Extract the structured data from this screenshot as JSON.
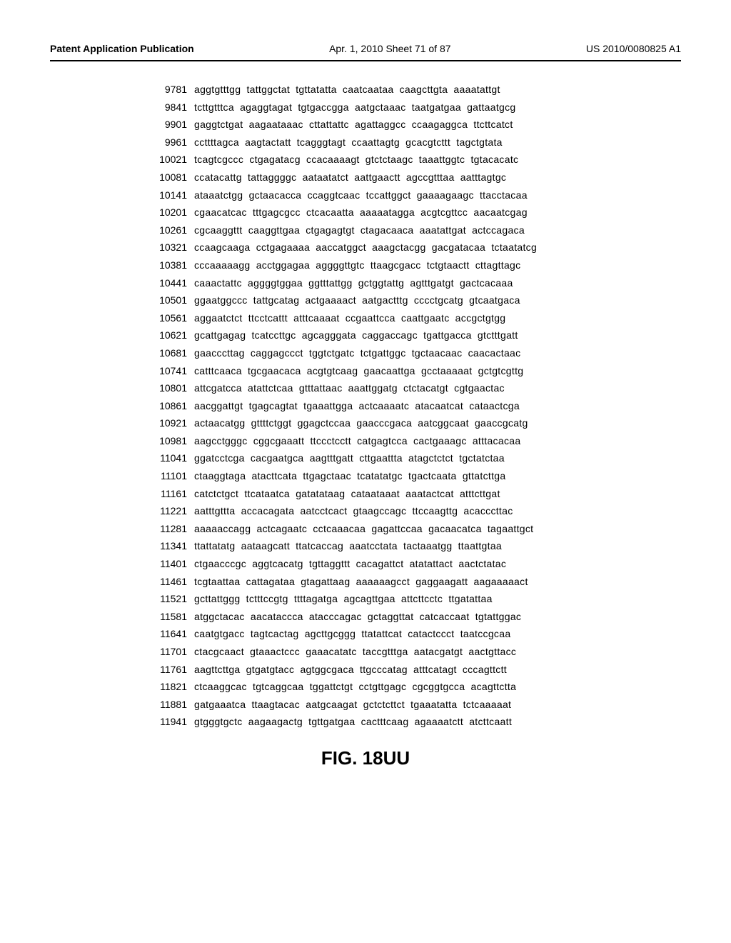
{
  "header": {
    "left": "Patent Application Publication",
    "center": "Apr. 1, 2010   Sheet 71 of 87",
    "right": "US 2010/0080825 A1"
  },
  "figure_label": "FIG.  18UU",
  "sequence": {
    "rows": [
      {
        "pos": "9781",
        "data": "aggtgtttgg tattggctat tgttatatta caatcaataa caagcttgta aaaatattgt"
      },
      {
        "pos": "9841",
        "data": "tcttgtttca agaggtagat tgtgaccgga aatgctaaac taatgatgaa gattaatgcg"
      },
      {
        "pos": "9901",
        "data": "gaggtctgat aagaataaac cttattattc agattaggcc ccaagaggca ttcttcatct"
      },
      {
        "pos": "9961",
        "data": "ccttttagca aagtactatt tcagggtagt ccaattagtg gcacgtcttt tagctgtata"
      },
      {
        "pos": "10021",
        "data": "tcagtcgccc ctgagatacg ccacaaaagt gtctctaagc taaattggtc tgtacacatc"
      },
      {
        "pos": "10081",
        "data": "ccatacattg tattaggggc aataatatct aattgaactt agccgtttaa aatttagtgc"
      },
      {
        "pos": "10141",
        "data": "ataaatctgg gctaacacca ccaggtcaac tccattggct gaaaagaagc ttacctacaa"
      },
      {
        "pos": "10201",
        "data": "cgaacatcac tttgagcgcc ctcacaatta aaaaatagga acgtcgttcc aacaatcgag"
      },
      {
        "pos": "10261",
        "data": "cgcaaggttt caaggttgaa ctgagagtgt ctagacaaca aaatattgat actccagaca"
      },
      {
        "pos": "10321",
        "data": "ccaagcaaga cctgagaaaa aaccatggct aaagctacgg gacgatacaa tctaatatcg"
      },
      {
        "pos": "10381",
        "data": "cccaaaaagg acctggagaa aggggttgtc ttaagcgacc tctgtaactt cttagttagc"
      },
      {
        "pos": "10441",
        "data": "caaactattc aggggtggaa ggtttattgg gctggtattg agtttgatgt gactcacaaa"
      },
      {
        "pos": "10501",
        "data": "ggaatggccc tattgcatag actgaaaact aatgactttg cccctgcatg gtcaatgaca"
      },
      {
        "pos": "10561",
        "data": "aggaatctct ttcctcattt atttcaaaat ccgaattcca caattgaatc accgctgtgg"
      },
      {
        "pos": "10621",
        "data": "gcattgagag tcatccttgc agcagggata caggaccagc tgattgacca gtctttgatt"
      },
      {
        "pos": "10681",
        "data": "gaacccttag caggagccct tggtctgatc tctgattggc tgctaacaac caacactaac"
      },
      {
        "pos": "10741",
        "data": "catttcaaca tgcgaacaca acgtgtcaag gaacaattga gcctaaaaat gctgtcgttg"
      },
      {
        "pos": "10801",
        "data": "attcgatcca atattctcaa gtttattaac aaattggatg ctctacatgt cgtgaactac"
      },
      {
        "pos": "10861",
        "data": "aacggattgt tgagcagtat tgaaattgga actcaaaatc atacaatcat cataactcga"
      },
      {
        "pos": "10921",
        "data": "actaacatgg gttttctggt ggagctccaa gaacccgaca aatcggcaat gaaccgcatg"
      },
      {
        "pos": "10981",
        "data": "aagcctgggc cggcgaaatt ttccctcctt catgagtcca cactgaaagc atttacacaa"
      },
      {
        "pos": "11041",
        "data": "ggatcctcga cacgaatgca aagtttgatt cttgaattta atagctctct tgctatctaa"
      },
      {
        "pos": "11101",
        "data": "ctaaggtaga atacttcata ttgagctaac tcatatatgc tgactcaata gttatcttga"
      },
      {
        "pos": "11161",
        "data": "catctctgct ttcataatca gatatataag cataataaat aaatactcat atttcttgat"
      },
      {
        "pos": "11221",
        "data": "aatttgttta accacagata aatcctcact gtaagccagc ttccaagttg acacccttac"
      },
      {
        "pos": "11281",
        "data": "aaaaaccagg actcagaatc cctcaaacaa gagattccaa gacaacatca tagaattgct"
      },
      {
        "pos": "11341",
        "data": "ttattatatg aataagcatt ttatcaccag aaatcctata tactaaatgg ttaattgtaa"
      },
      {
        "pos": "11401",
        "data": "ctgaacccgc aggtcacatg tgttaggttt cacagattct atatattact aactctatac"
      },
      {
        "pos": "11461",
        "data": "tcgtaattaa cattagataa gtagattaag aaaaaagcct gaggaagatt aagaaaaact"
      },
      {
        "pos": "11521",
        "data": "gcttattggg tctttccgtg ttttagatga agcagttgaa attcttcctc ttgatattaa"
      },
      {
        "pos": "11581",
        "data": "atggctacac aacataccca atacccagac gctaggttat catcaccaat tgtattggac"
      },
      {
        "pos": "11641",
        "data": "caatgtgacc tagtcactag agcttgcggg ttatattcat catactccct taatccgcaa"
      },
      {
        "pos": "11701",
        "data": "ctacgcaact gtaaactccc gaaacatatc taccgtttga aatacgatgt aactgttacc"
      },
      {
        "pos": "11761",
        "data": "aagttcttga gtgatgtacc agtggcgaca ttgcccatag atttcatagt cccagttctt"
      },
      {
        "pos": "11821",
        "data": "ctcaaggcac tgtcaggcaa tggattctgt cctgttgagc cgcggtgcca acagttctta"
      },
      {
        "pos": "11881",
        "data": "gatgaaatca ttaagtacac aatgcaagat gctctcttct tgaaatatta tctcaaaaat"
      },
      {
        "pos": "11941",
        "data": "gtgggtgctc aagaagactg tgttgatgaa cactttcaag agaaaatctt atcttcaatt"
      }
    ]
  },
  "styles": {
    "background_color": "#ffffff",
    "text_color": "#000000",
    "header_fontsize": 14,
    "sequence_fontsize": 14,
    "figure_fontsize": 26,
    "border_color": "#000000"
  }
}
